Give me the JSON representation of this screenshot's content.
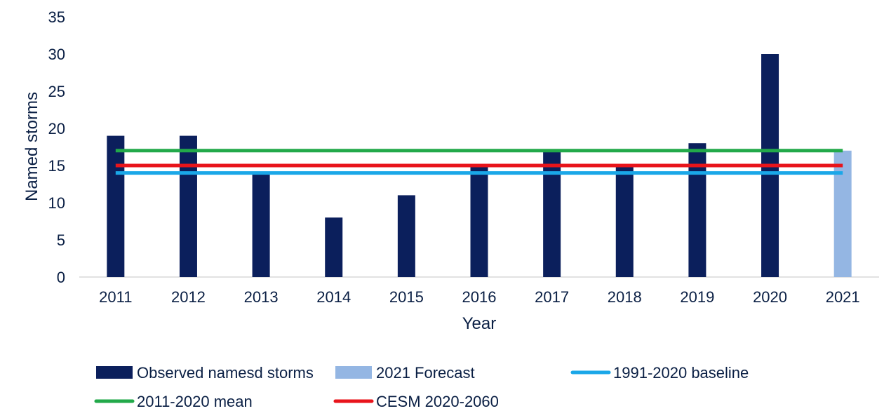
{
  "chart_data": {
    "type": "bar",
    "title": "",
    "xlabel": "Year",
    "ylabel": "Named storms",
    "ylim": [
      0,
      35
    ],
    "yticks": [
      0,
      5,
      10,
      15,
      20,
      25,
      30,
      35
    ],
    "grid": false,
    "legend_position": "bottom",
    "categories": [
      "2011",
      "2012",
      "2013",
      "2014",
      "2015",
      "2016",
      "2017",
      "2018",
      "2019",
      "2020",
      "2021"
    ],
    "bar_series": [
      {
        "name": "Observed namesd storms",
        "color": "#0b1f5c",
        "values": [
          19,
          19,
          14,
          8,
          11,
          15,
          17,
          15,
          18,
          30,
          null
        ]
      },
      {
        "name": "2021 Forecast",
        "color": "#94b6e3",
        "values": [
          null,
          null,
          null,
          null,
          null,
          null,
          null,
          null,
          null,
          null,
          17
        ]
      }
    ],
    "line_series": [
      {
        "name": "1991-2020 baseline",
        "color": "#1aa7e8",
        "value": 14
      },
      {
        "name": "2011-2020 mean",
        "color": "#22a94a",
        "value": 17
      },
      {
        "name": "CESM 2020-2060",
        "color": "#e8141b",
        "value": 15
      }
    ],
    "legend": [
      {
        "name": "Observed namesd storms",
        "kind": "bar",
        "color": "#0b1f5c"
      },
      {
        "name": "2021 Forecast",
        "kind": "bar",
        "color": "#94b6e3"
      },
      {
        "name": "1991-2020 baseline",
        "kind": "line",
        "color": "#1aa7e8"
      },
      {
        "name": "2011-2020 mean",
        "kind": "line",
        "color": "#22a94a"
      },
      {
        "name": "CESM 2020-2060",
        "kind": "line",
        "color": "#e8141b"
      }
    ]
  }
}
